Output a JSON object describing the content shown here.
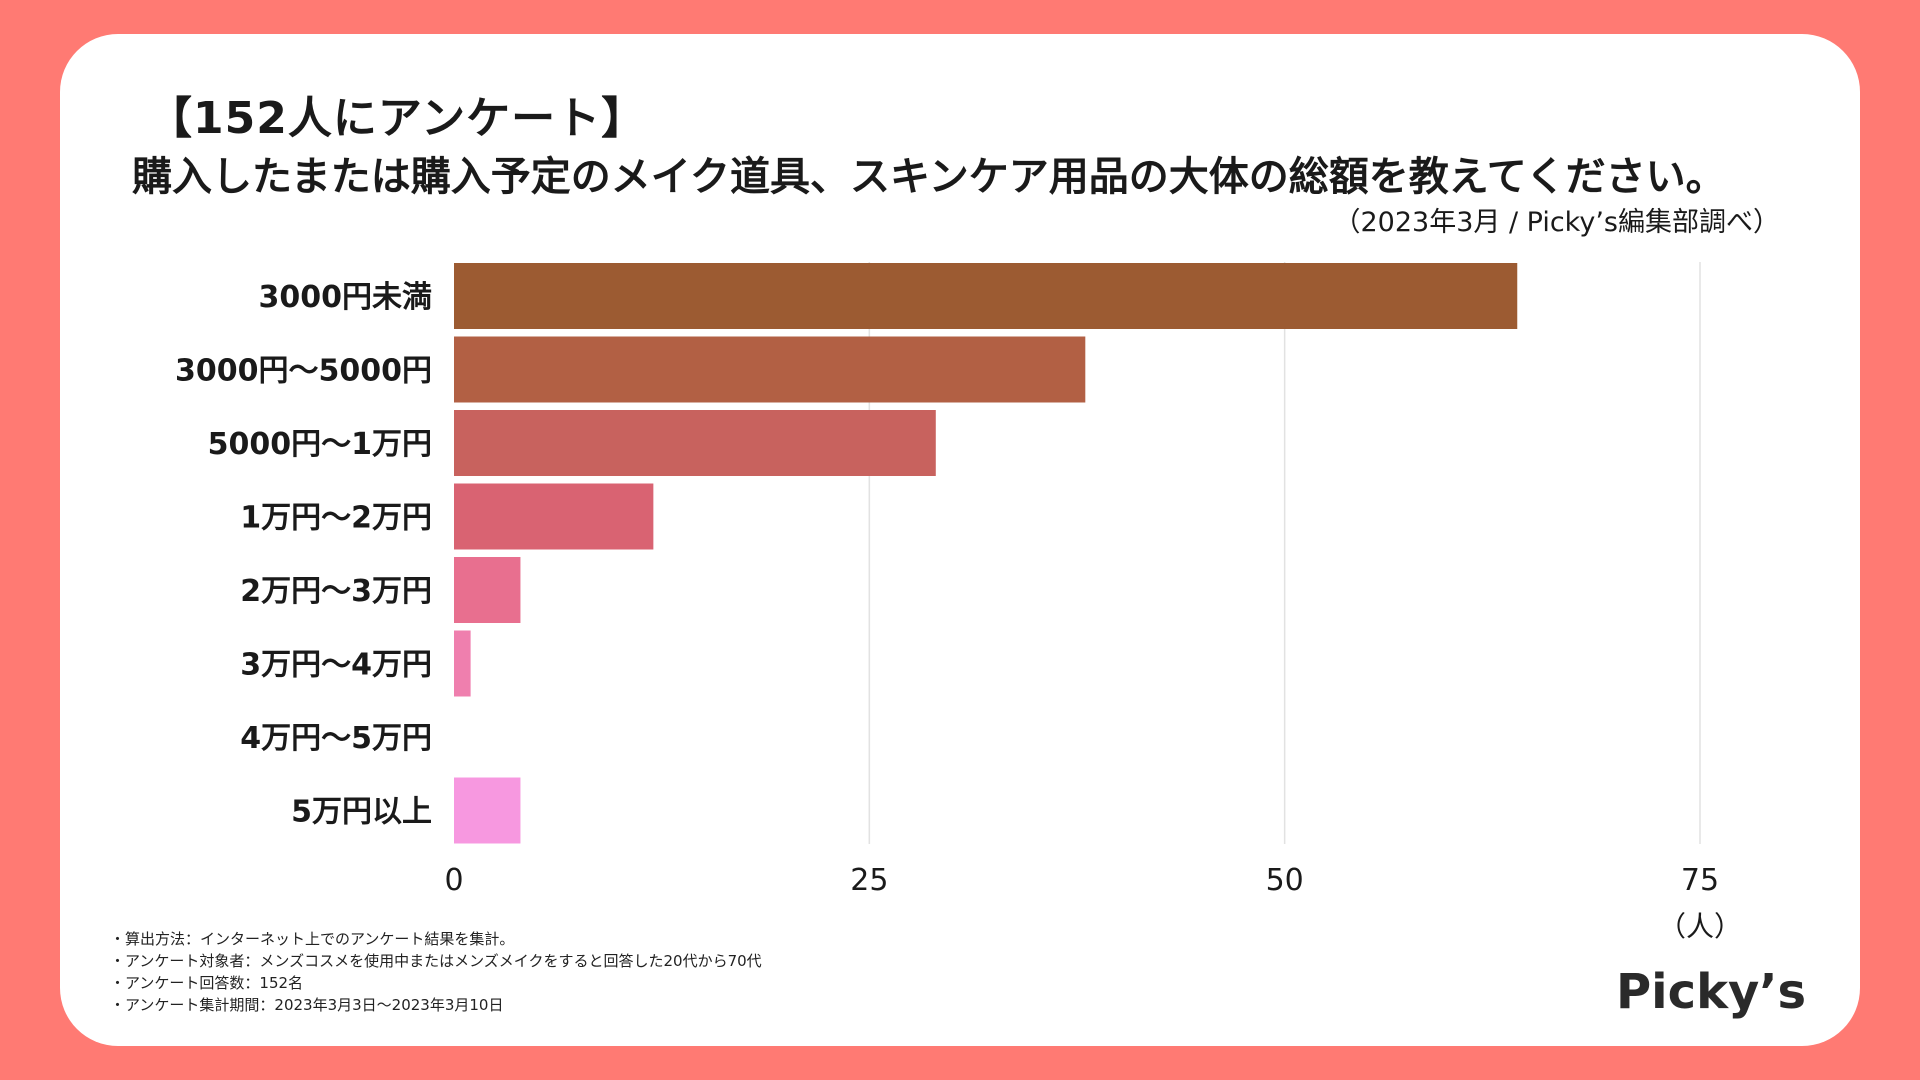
{
  "title": {
    "line1": "【152人にアンケート】",
    "line2": "購入したまたは購入予定のメイク道具、スキンケア用品の大体の総額を教えてください。",
    "source": "（2023年3月 / Picky’s編集部調べ）"
  },
  "chart_data": {
    "type": "bar",
    "orientation": "horizontal",
    "categories": [
      "3000円未満",
      "3000円〜5000円",
      "5000円〜1万円",
      "1万円〜2万円",
      "2万円〜3万円",
      "3万円〜4万円",
      "4万円〜5万円",
      "5万円以上"
    ],
    "values": [
      64,
      38,
      29,
      12,
      4,
      1,
      0,
      4
    ],
    "colors": [
      "#9c5b32",
      "#b26044",
      "#c8625e",
      "#d96372",
      "#e86f8f",
      "#ef7fae",
      "#f38ac9",
      "#f798e0"
    ],
    "xlim": [
      0,
      80
    ],
    "xticks": [
      0,
      25,
      50,
      75
    ],
    "xtick_labels": [
      "0",
      "25",
      "50",
      "75"
    ],
    "unit": "（人）",
    "grid": true
  },
  "notes": [
    "・算出方法：インターネット上でのアンケート結果を集計。",
    "・アンケート対象者：メンズコスメを使用中またはメンズメイクをすると回答した20代から70代",
    "・アンケート回答数：152名",
    "・アンケート集計期間：2023年3月3日〜2023年3月10日"
  ],
  "logo": "Picky’s"
}
